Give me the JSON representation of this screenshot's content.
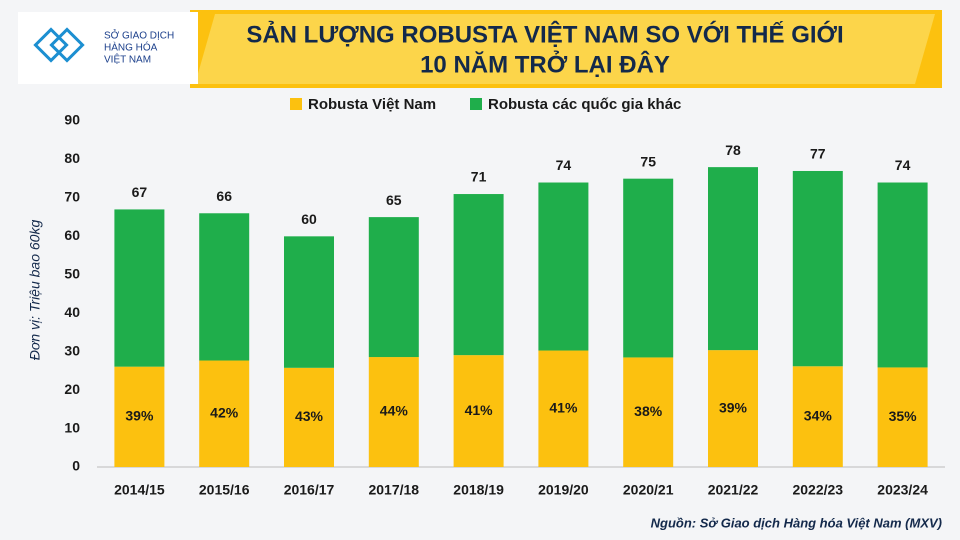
{
  "logo": {
    "text": [
      "SỞ GIAO DỊCH",
      "HÀNG HÓA",
      "VIỆT NAM"
    ]
  },
  "chart_data": {
    "type": "stacked_bar",
    "title": [
      "SẢN LƯỢNG ROBUSTA VIỆT NAM SO VỚI THẾ GIỚI",
      "10 NĂM TRỞ LẠI ĐÂY"
    ],
    "y_label": "Đơn vị: Triệu bao 60kg",
    "source": "Nguồn: Sở Giao dịch Hàng hóa Việt Nam (MXV)",
    "categories": [
      "2014/15",
      "2015/16",
      "2016/17",
      "2017/18",
      "2018/19",
      "2019/20",
      "2020/21",
      "2021/22",
      "2022/23",
      "2023/24"
    ],
    "series": [
      {
        "name": "Robusta Việt Nam",
        "color": "#fcc10f",
        "values": [
          26.1,
          27.7,
          25.8,
          28.6,
          29.1,
          30.3,
          28.5,
          30.4,
          26.2,
          25.9
        ]
      },
      {
        "name": "Robusta các quốc gia khác",
        "color": "#1fae4b",
        "values": [
          40.9,
          38.3,
          34.2,
          36.4,
          41.9,
          43.7,
          46.5,
          47.6,
          50.8,
          48.1
        ]
      }
    ],
    "totals": [
      67,
      66,
      60,
      65,
      71,
      74,
      75,
      78,
      77,
      74
    ],
    "share_labels": [
      "39%",
      "42%",
      "43%",
      "44%",
      "41%",
      "41%",
      "38%",
      "39%",
      "34%",
      "35%"
    ],
    "ylim": [
      0,
      90
    ],
    "yticks": [
      0,
      10,
      20,
      30,
      40,
      50,
      60,
      70,
      80,
      90
    ],
    "grid": false,
    "legend": "top"
  }
}
